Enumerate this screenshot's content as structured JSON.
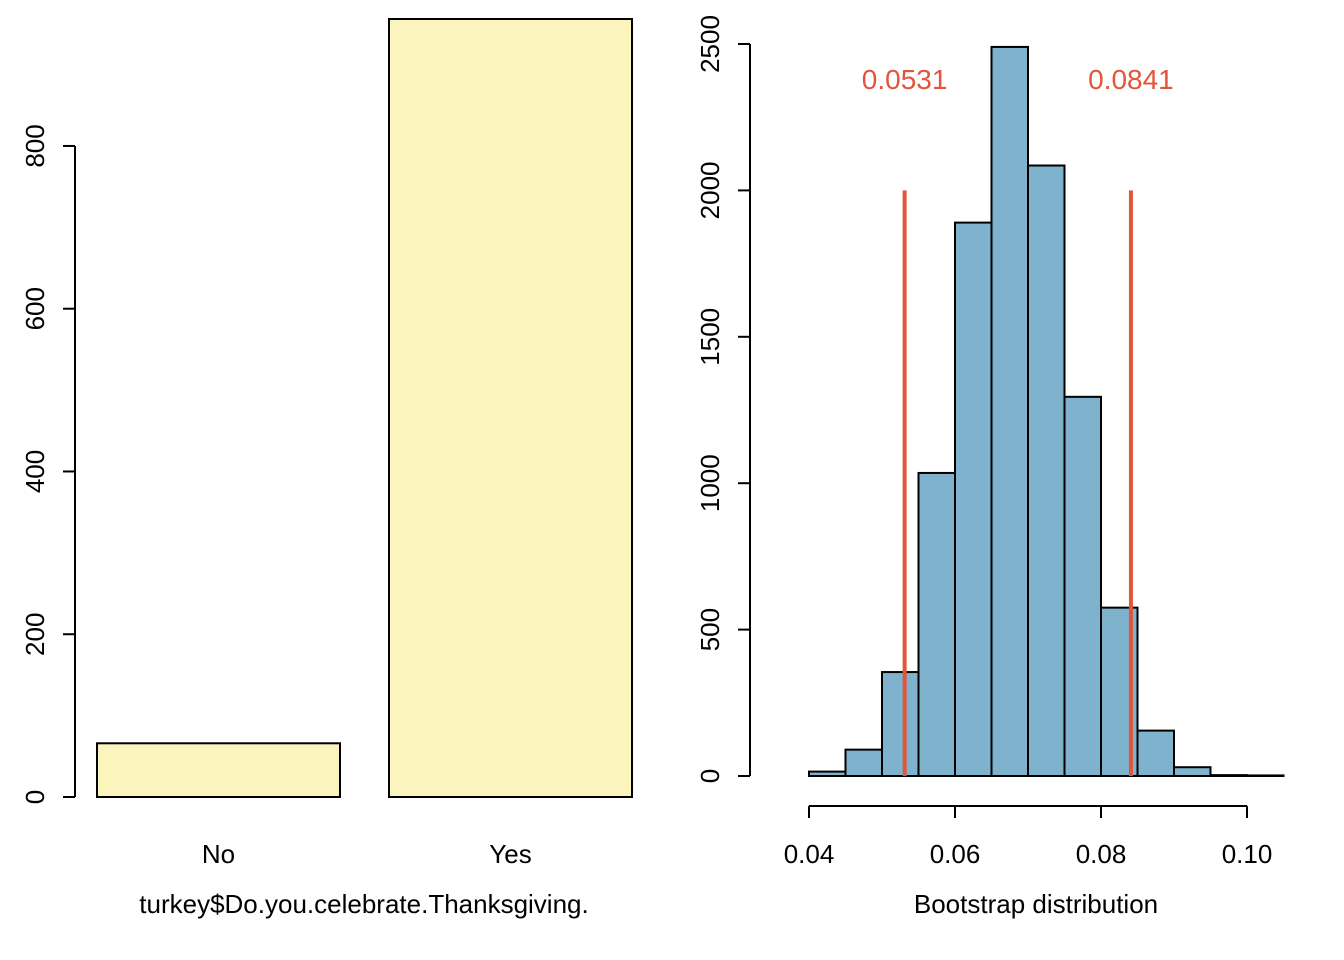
{
  "chart_data": [
    {
      "type": "bar",
      "categories": [
        "No",
        "Yes"
      ],
      "values": [
        66,
        956
      ],
      "xlabel": "turkey$Do.you.celebrate.Thanksgiving.",
      "ylabel": "",
      "ylim": [
        0,
        956
      ],
      "yticks": [
        0,
        200,
        400,
        600,
        800
      ],
      "bar_color": "#fbf5bd",
      "grid": false
    },
    {
      "type": "bar",
      "subtype": "histogram",
      "bins": [
        {
          "x0": 0.04,
          "x1": 0.045,
          "count": 15
        },
        {
          "x0": 0.045,
          "x1": 0.05,
          "count": 90
        },
        {
          "x0": 0.05,
          "x1": 0.055,
          "count": 355
        },
        {
          "x0": 0.055,
          "x1": 0.06,
          "count": 1035
        },
        {
          "x0": 0.06,
          "x1": 0.065,
          "count": 1890
        },
        {
          "x0": 0.065,
          "x1": 0.07,
          "count": 2490
        },
        {
          "x0": 0.07,
          "x1": 0.075,
          "count": 2085
        },
        {
          "x0": 0.075,
          "x1": 0.08,
          "count": 1295
        },
        {
          "x0": 0.08,
          "x1": 0.085,
          "count": 575
        },
        {
          "x0": 0.085,
          "x1": 0.09,
          "count": 155
        },
        {
          "x0": 0.09,
          "x1": 0.095,
          "count": 30
        },
        {
          "x0": 0.095,
          "x1": 0.1,
          "count": 3
        },
        {
          "x0": 0.1,
          "x1": 0.105,
          "count": 2
        }
      ],
      "xlabel": "Bootstrap distribution",
      "ylabel": "",
      "xlim": [
        0.04,
        0.105
      ],
      "ylim": [
        0,
        2500
      ],
      "xticks": [
        0.04,
        0.06,
        0.08,
        0.1
      ],
      "xtick_labels": [
        "0.04",
        "0.06",
        "0.08",
        "0.10"
      ],
      "yticks": [
        0,
        500,
        1000,
        1500,
        2000,
        2500
      ],
      "bar_color": "#7fb2cc",
      "grid": false,
      "ci_lines": {
        "values": [
          0.0531,
          0.0841
        ],
        "labels": [
          "0.0531",
          "0.0841"
        ],
        "top": 2000,
        "color": "#e3553a"
      }
    }
  ]
}
